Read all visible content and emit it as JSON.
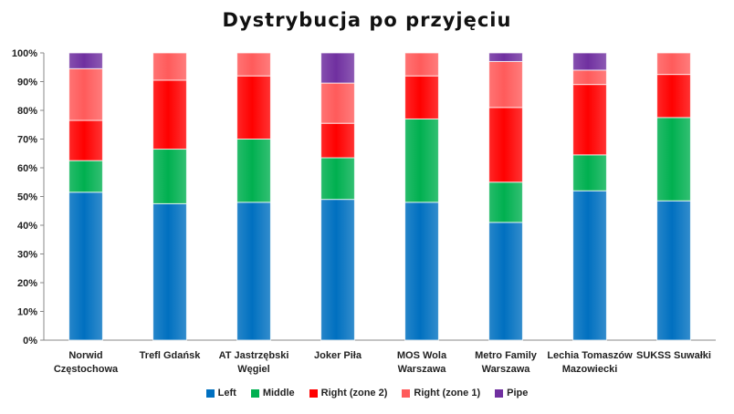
{
  "chart_data": {
    "type": "bar",
    "stacked": true,
    "title": "Dystrybucja po przyjęciu",
    "categories": [
      "Norwid\nCzęstochowa",
      "Trefl Gdańsk",
      "AT Jastrzębski\nWęgiel",
      "Joker Piła",
      "MOS Wola\nWarszawa",
      "Metro Family\nWarszawa",
      "Lechia Tomaszów\nMazowiecki",
      "SUKSS Suwałki"
    ],
    "series": [
      {
        "name": "Left",
        "color": "#0070c0",
        "values": [
          51.5,
          47.5,
          48,
          49,
          48,
          41,
          52,
          48.5
        ]
      },
      {
        "name": "Middle",
        "color": "#00b050",
        "values": [
          11,
          19,
          22,
          14.5,
          29,
          14,
          12.5,
          29
        ]
      },
      {
        "name": "Right (zone 2)",
        "color": "#ff0000",
        "values": [
          14,
          24,
          22,
          12,
          15,
          26,
          24.5,
          15
        ]
      },
      {
        "name": "Right (zone 1)",
        "color": "#ff5b5b",
        "values": [
          18,
          9.5,
          8,
          14,
          8,
          16,
          5,
          7.5
        ]
      },
      {
        "name": "Pipe",
        "color": "#7030a0",
        "values": [
          5.5,
          0,
          0,
          10.5,
          0,
          3,
          6,
          0
        ]
      }
    ],
    "yticks": [
      "0%",
      "10%",
      "20%",
      "30%",
      "40%",
      "50%",
      "60%",
      "70%",
      "80%",
      "90%",
      "100%"
    ],
    "ylim": [
      0,
      100
    ],
    "grid": false,
    "legend_position": "bottom"
  }
}
